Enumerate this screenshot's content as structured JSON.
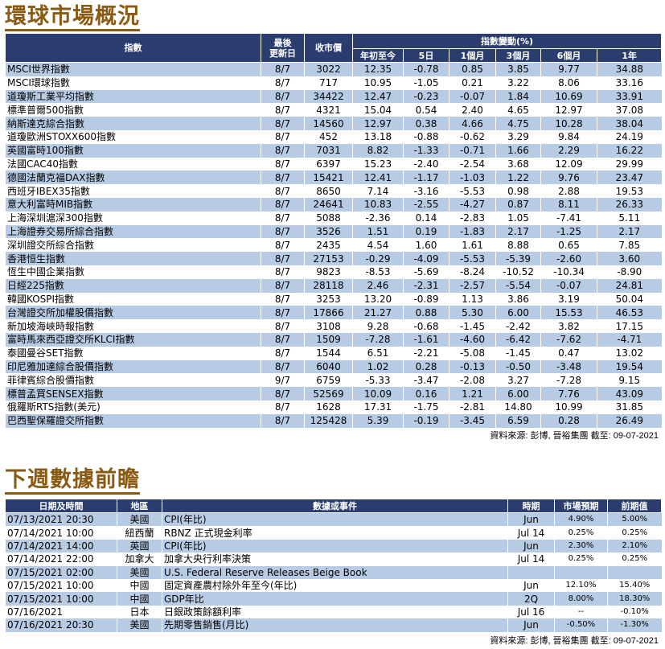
{
  "market": {
    "title": "環球市場概況",
    "headers": {
      "index": "指數",
      "last_update": [
        "最後",
        "更新日"
      ],
      "close": "收市價",
      "change_group": "指數變動(%)",
      "periods": [
        "年初至今",
        "5日",
        "1個月",
        "3個月",
        "6個月",
        "1年"
      ]
    },
    "rows": [
      {
        "name": "MSCI世界指數",
        "date": "8/7",
        "close": "3022",
        "vals": [
          "12.35",
          "-0.78",
          "0.85",
          "3.85",
          "9.77",
          "34.88"
        ]
      },
      {
        "name": "MSCI環球指數",
        "date": "8/7",
        "close": "717",
        "vals": [
          "10.95",
          "-1.05",
          "0.21",
          "3.22",
          "8.06",
          "33.16"
        ]
      },
      {
        "name": "道瓊斯工業平均指數",
        "date": "8/7",
        "close": "34422",
        "vals": [
          "12.47",
          "-0.23",
          "-0.07",
          "1.84",
          "10.69",
          "33.91"
        ]
      },
      {
        "name": "標準普爾500指數",
        "date": "8/7",
        "close": "4321",
        "vals": [
          "15.04",
          "0.54",
          "2.40",
          "4.65",
          "12.97",
          "37.08"
        ]
      },
      {
        "name": "納斯達克綜合指數",
        "date": "8/7",
        "close": "14560",
        "vals": [
          "12.97",
          "0.38",
          "4.66",
          "4.75",
          "10.28",
          "38.04"
        ]
      },
      {
        "name": "道瓊歐洲STOXX600指數",
        "date": "8/7",
        "close": "452",
        "vals": [
          "13.18",
          "-0.88",
          "-0.62",
          "3.29",
          "9.84",
          "24.19"
        ]
      },
      {
        "name": "英國富時100指數",
        "date": "8/7",
        "close": "7031",
        "vals": [
          "8.82",
          "-1.33",
          "-0.71",
          "1.66",
          "2.29",
          "16.22"
        ]
      },
      {
        "name": "法國CAC40指數",
        "date": "8/7",
        "close": "6397",
        "vals": [
          "15.23",
          "-2.40",
          "-2.54",
          "3.68",
          "12.09",
          "29.99"
        ]
      },
      {
        "name": "德國法蘭克福DAX指數",
        "date": "8/7",
        "close": "15421",
        "vals": [
          "12.41",
          "-1.17",
          "-1.03",
          "1.22",
          "9.76",
          "23.47"
        ]
      },
      {
        "name": "西班牙IBEX35指數",
        "date": "8/7",
        "close": "8650",
        "vals": [
          "7.14",
          "-3.16",
          "-5.53",
          "0.98",
          "2.88",
          "19.53"
        ]
      },
      {
        "name": "意大利富時MIB指數",
        "date": "8/7",
        "close": "24641",
        "vals": [
          "10.83",
          "-2.55",
          "-4.27",
          "0.87",
          "8.11",
          "26.33"
        ]
      },
      {
        "name": "上海深圳滬深300指數",
        "date": "8/7",
        "close": "5088",
        "vals": [
          "-2.36",
          "0.14",
          "-2.83",
          "1.05",
          "-7.41",
          "5.11"
        ]
      },
      {
        "name": "上海證券交易所綜合指數",
        "date": "8/7",
        "close": "3526",
        "vals": [
          "1.51",
          "0.19",
          "-1.83",
          "2.17",
          "-1.25",
          "2.17"
        ]
      },
      {
        "name": "深圳證交所綜合指數",
        "date": "8/7",
        "close": "2435",
        "vals": [
          "4.54",
          "1.60",
          "1.61",
          "8.88",
          "0.65",
          "7.85"
        ]
      },
      {
        "name": "香港恒生指數",
        "date": "8/7",
        "close": "27153",
        "vals": [
          "-0.29",
          "-4.09",
          "-5.53",
          "-5.39",
          "-2.60",
          "3.60"
        ]
      },
      {
        "name": "恆生中國企業指數",
        "date": "8/7",
        "close": "9823",
        "vals": [
          "-8.53",
          "-5.69",
          "-8.24",
          "-10.52",
          "-10.34",
          "-8.90"
        ]
      },
      {
        "name": "日經225指數",
        "date": "8/7",
        "close": "28118",
        "vals": [
          "2.46",
          "-2.31",
          "-2.57",
          "-5.54",
          "-0.07",
          "24.81"
        ]
      },
      {
        "name": "韓國KOSPI指數",
        "date": "8/7",
        "close": "3253",
        "vals": [
          "13.20",
          "-0.89",
          "1.13",
          "3.86",
          "3.19",
          "50.04"
        ]
      },
      {
        "name": "台灣證交所加權股價指數",
        "date": "8/7",
        "close": "17866",
        "vals": [
          "21.27",
          "0.88",
          "5.30",
          "6.00",
          "15.53",
          "46.53"
        ]
      },
      {
        "name": "新加坡海峽時報指數",
        "date": "8/7",
        "close": "3108",
        "vals": [
          "9.28",
          "-0.68",
          "-1.45",
          "-2.42",
          "3.82",
          "17.15"
        ]
      },
      {
        "name": "富時馬來西亞證交所KLCI指數",
        "date": "8/7",
        "close": "1509",
        "vals": [
          "-7.28",
          "-1.61",
          "-4.60",
          "-6.42",
          "-7.62",
          "-4.71"
        ]
      },
      {
        "name": "泰國曼谷SET指數",
        "date": "8/7",
        "close": "1544",
        "vals": [
          "6.51",
          "-2.21",
          "-5.08",
          "-1.45",
          "0.47",
          "13.02"
        ]
      },
      {
        "name": "印尼雅加達綜合股價指數",
        "date": "8/7",
        "close": "6040",
        "vals": [
          "1.02",
          "0.28",
          "-0.13",
          "-0.50",
          "-3.48",
          "19.54"
        ]
      },
      {
        "name": "菲律賓綜合股價指數",
        "date": "9/7",
        "close": "6759",
        "vals": [
          "-5.33",
          "-3.47",
          "-2.08",
          "3.27",
          "-7.28",
          "9.15"
        ]
      },
      {
        "name": "標普孟買SENSEX指數",
        "date": "8/7",
        "close": "52569",
        "vals": [
          "10.09",
          "0.16",
          "1.21",
          "6.00",
          "7.76",
          "43.09"
        ]
      },
      {
        "name": "俄羅斯RTS指數(美元)",
        "date": "8/7",
        "close": "1628",
        "vals": [
          "17.31",
          "-1.75",
          "-2.81",
          "14.80",
          "10.99",
          "31.85"
        ]
      },
      {
        "name": "巴西聖保羅證交所指數",
        "date": "8/7",
        "close": "125428",
        "vals": [
          "5.39",
          "-0.19",
          "-3.45",
          "6.59",
          "0.28",
          "26.49"
        ]
      }
    ],
    "source": "資料來源: 彭博, 晉裕集團 截至: 09-07-2021"
  },
  "calendar": {
    "title": "下週數據前瞻",
    "headers": [
      "日期及時間",
      "地區",
      "數據或事件",
      "時期",
      "市場預期",
      "前期值"
    ],
    "rows": [
      {
        "datetime": "07/13/2021 20:30",
        "region": "美國",
        "event": "CPI(年比)",
        "period": "Jun",
        "forecast": "4.90%",
        "previous": "5.00%"
      },
      {
        "datetime": "07/14/2021 10:00",
        "region": "紐西蘭",
        "event": "RBNZ 正式現金利率",
        "period": "Jul 14",
        "forecast": "0.25%",
        "previous": "0.25%"
      },
      {
        "datetime": "07/14/2021 14:00",
        "region": "英國",
        "event": "CPI(年比)",
        "period": "Jun",
        "forecast": "2.30%",
        "previous": "2.10%"
      },
      {
        "datetime": "07/14/2021 22:00",
        "region": "加拿大",
        "event": "加拿大央行利率決策",
        "period": "Jul 14",
        "forecast": "0.25%",
        "previous": "0.25%"
      },
      {
        "datetime": "07/15/2021 02:00",
        "region": "美國",
        "event": "U.S. Federal Reserve Releases Beige Book",
        "period": "",
        "forecast": "",
        "previous": ""
      },
      {
        "datetime": "07/15/2021 10:00",
        "region": "中國",
        "event": "固定資產農村除外年至今(年比)",
        "period": "Jun",
        "forecast": "12.10%",
        "previous": "15.40%"
      },
      {
        "datetime": "07/15/2021 10:00",
        "region": "中國",
        "event": "GDP年比",
        "period": "2Q",
        "forecast": "8.00%",
        "previous": "18.30%"
      },
      {
        "datetime": "07/16/2021",
        "region": "日本",
        "event": "日銀政策餘額利率",
        "period": "Jul 16",
        "forecast": "--",
        "previous": "-0.10%"
      },
      {
        "datetime": "07/16/2021 20:30",
        "region": "美國",
        "event": "先期零售銷售(月比)",
        "period": "Jun",
        "forecast": "-0.50%",
        "previous": "-1.30%"
      }
    ],
    "source": "資料來源: 彭博, 晉裕集團 截至: 09-07-2021"
  },
  "colors": {
    "header_bg": "#2a3d6e",
    "row_stripe": "#b7cbe4",
    "title": "#8a5a12"
  }
}
